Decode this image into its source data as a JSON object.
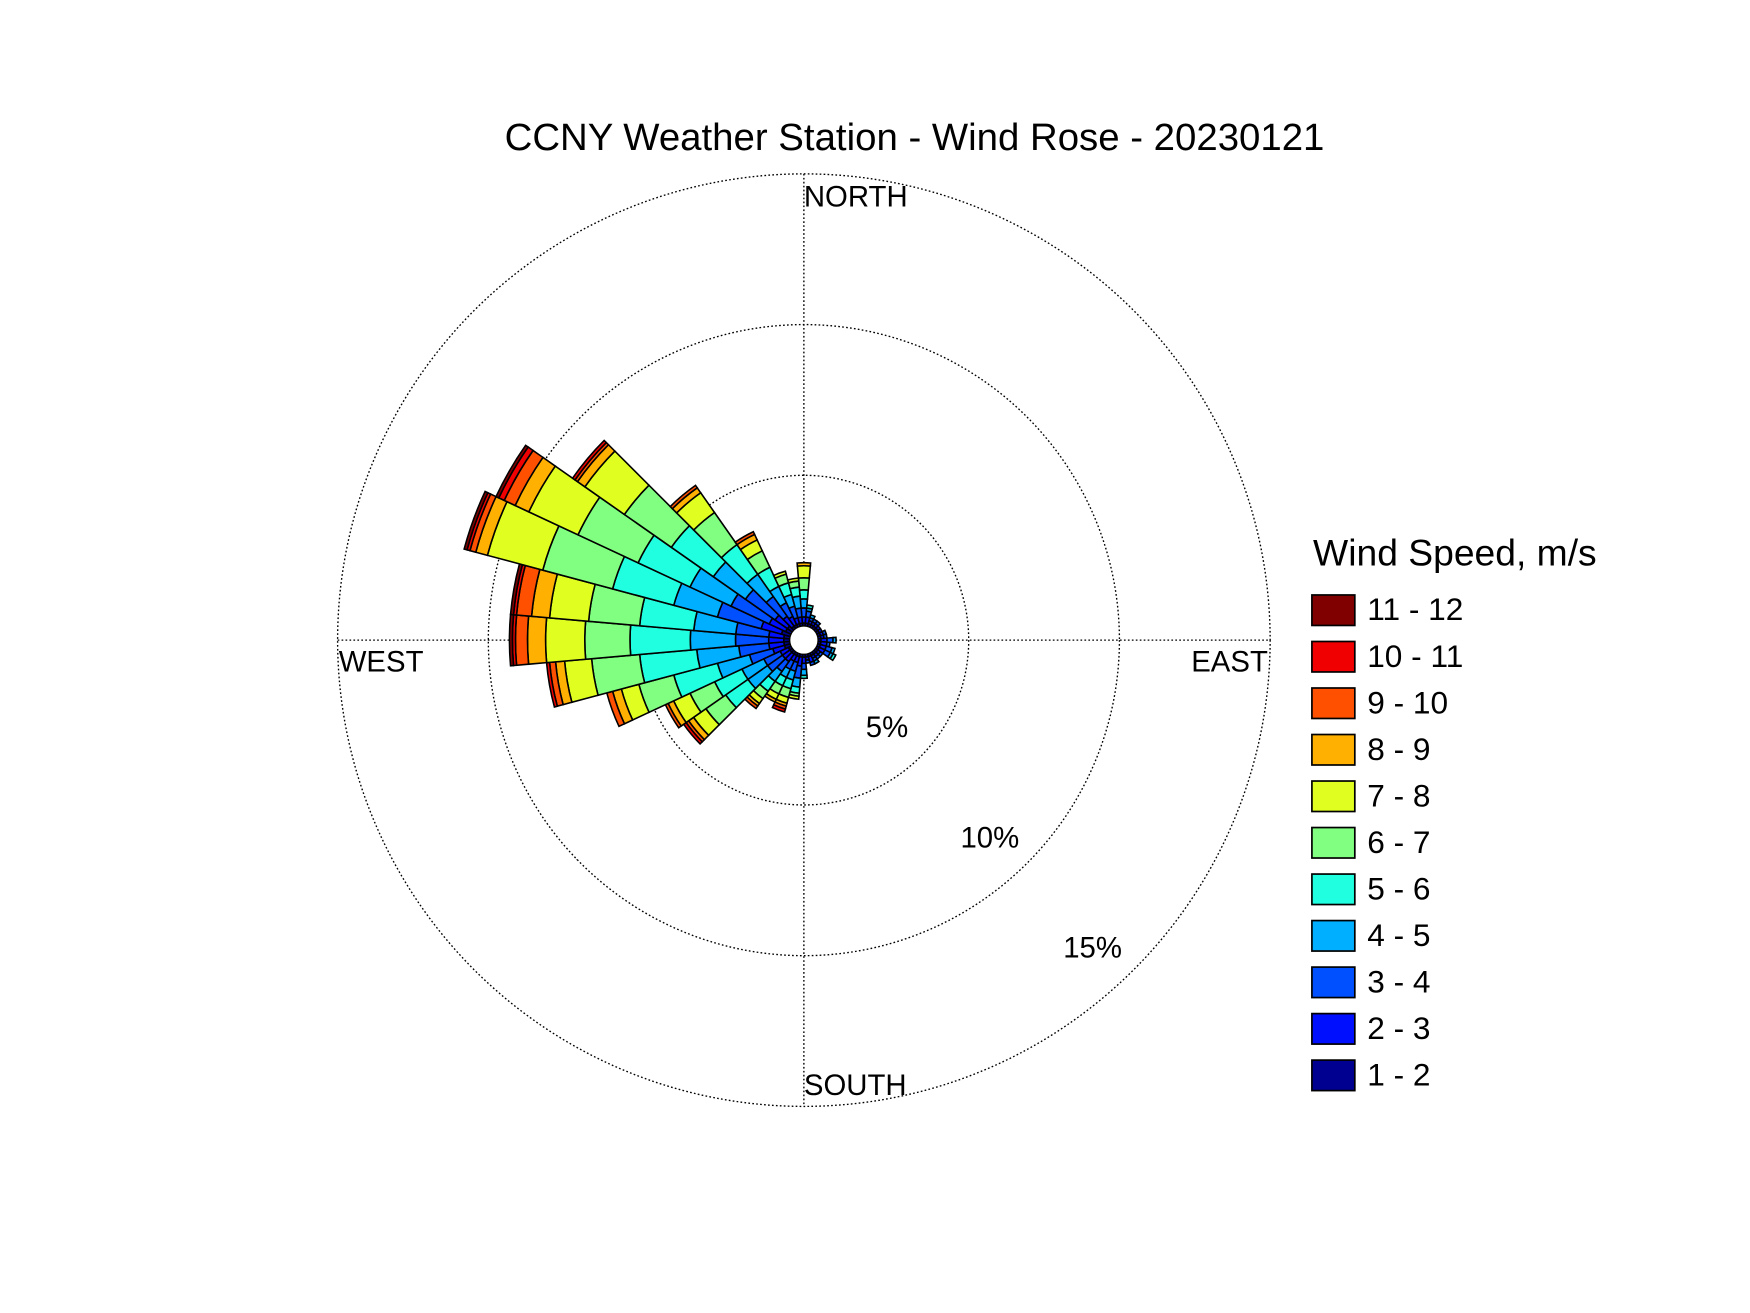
{
  "chart_data": {
    "type": "wind_rose",
    "title": "CCNY Weather Station - Wind Rose - 20230121",
    "legend_title": "Wind Speed, m/s",
    "direction_labels": {
      "north": "NORTH",
      "east": "EAST",
      "south": "SOUTH",
      "west": "WEST"
    },
    "x": [
      0,
      10,
      20,
      30,
      40,
      50,
      60,
      70,
      80,
      90,
      100,
      110,
      120,
      130,
      140,
      150,
      160,
      170,
      180,
      190,
      200,
      210,
      220,
      230,
      240,
      250,
      260,
      270,
      280,
      290,
      300,
      310,
      320,
      330,
      340,
      350
    ],
    "rlim": [
      0,
      15
    ],
    "rticks": [
      {
        "value": 5,
        "label": "5%"
      },
      {
        "value": 10,
        "label": "10%"
      },
      {
        "value": 15,
        "label": "15%"
      }
    ],
    "grid": true,
    "series": [
      {
        "name": "1 - 2",
        "color": "#000090",
        "values": [
          0.1,
          0.1,
          0.1,
          0.1,
          0.1,
          0.1,
          0.1,
          0.1,
          0.1,
          0.1,
          0.1,
          0.1,
          0.1,
          0.1,
          0.1,
          0.1,
          0.1,
          0.1,
          0.1,
          0.1,
          0.1,
          0.1,
          0.1,
          0.1,
          0.1,
          0.2,
          0.2,
          0.2,
          0.2,
          0.3,
          0.2,
          0.2,
          0.1,
          0.1,
          0.1,
          0.1
        ]
      },
      {
        "name": "2 - 3",
        "color": "#0010ff",
        "values": [
          0.2,
          0.2,
          0.1,
          0.1,
          0.1,
          0.1,
          0.1,
          0.1,
          0.1,
          0.2,
          0.2,
          0.2,
          0.2,
          0.1,
          0.1,
          0.1,
          0.2,
          0.1,
          0.2,
          0.3,
          0.2,
          0.2,
          0.3,
          0.3,
          0.3,
          0.4,
          0.5,
          0.5,
          0.5,
          0.7,
          0.6,
          0.5,
          0.4,
          0.3,
          0.2,
          0.2
        ]
      },
      {
        "name": "3 - 4",
        "color": "#0050ff",
        "values": [
          0.3,
          0.2,
          0.1,
          0.1,
          0.1,
          0,
          0,
          0.1,
          0.1,
          0.2,
          0.1,
          0.2,
          0.2,
          0.1,
          0.1,
          0.1,
          0.1,
          0.1,
          0.2,
          0.4,
          0.3,
          0.3,
          0.4,
          0.6,
          0.6,
          0.8,
          1.0,
          1.1,
          1.1,
          1.5,
          1.4,
          1.2,
          0.8,
          0.5,
          0.4,
          0.3
        ]
      },
      {
        "name": "4 - 5",
        "color": "#00afff",
        "values": [
          0.3,
          0.1,
          0.1,
          0,
          0,
          0,
          0,
          0,
          0,
          0.1,
          0,
          0.1,
          0.1,
          0,
          0,
          0.1,
          0,
          0,
          0.2,
          0.3,
          0.3,
          0.3,
          0.4,
          0.8,
          0.8,
          1.1,
          1.4,
          1.5,
          1.4,
          1.5,
          1.5,
          1.3,
          0.9,
          0.6,
          0.4,
          0.4
        ]
      },
      {
        "name": "5 - 6",
        "color": "#20ffe0",
        "values": [
          0.3,
          0.1,
          0,
          0,
          0,
          0,
          0,
          0,
          0,
          0,
          0,
          0,
          0.1,
          0,
          0,
          0,
          0,
          0,
          0.1,
          0.2,
          0.3,
          0.3,
          0.4,
          0.9,
          1.0,
          1.5,
          1.9,
          2.0,
          1.8,
          2.1,
          1.9,
          1.7,
          1.2,
          0.7,
          0.4,
          0.3
        ]
      },
      {
        "name": "6 - 7",
        "color": "#80ff80",
        "values": [
          0.4,
          0,
          0,
          0,
          0,
          0,
          0,
          0,
          0,
          0,
          0,
          0,
          0,
          0,
          0,
          0,
          0,
          0,
          0,
          0.1,
          0.3,
          0.3,
          0.3,
          0.8,
          0.9,
          1.2,
          1.6,
          1.5,
          1.7,
          2.4,
          2.2,
          1.9,
          1.3,
          0.6,
          0.3,
          0.2
        ]
      },
      {
        "name": "7 - 8",
        "color": "#e0ff20",
        "values": [
          0.4,
          0,
          0,
          0,
          0,
          0,
          0,
          0,
          0,
          0,
          0,
          0,
          0,
          0,
          0,
          0,
          0,
          0,
          0,
          0.1,
          0.2,
          0.2,
          0.2,
          0.5,
          0.6,
          0.6,
          0.9,
          1.3,
          1.3,
          1.9,
          1.8,
          1.6,
          0.8,
          0.4,
          0.1,
          0.1
        ]
      },
      {
        "name": "8 - 9",
        "color": "#ffb000",
        "values": [
          0.1,
          0,
          0,
          0,
          0,
          0,
          0,
          0,
          0,
          0,
          0,
          0,
          0,
          0,
          0,
          0,
          0,
          0,
          0,
          0,
          0.1,
          0.1,
          0.1,
          0.2,
          0.2,
          0.3,
          0.3,
          0.6,
          0.6,
          0.4,
          0.5,
          0.3,
          0.2,
          0.2,
          0,
          0
        ]
      },
      {
        "name": "9 - 10",
        "color": "#ff5000",
        "values": [
          0,
          0,
          0,
          0,
          0,
          0,
          0,
          0,
          0,
          0,
          0,
          0,
          0,
          0,
          0,
          0,
          0,
          0,
          0,
          0,
          0.1,
          0,
          0.1,
          0.1,
          0.1,
          0.2,
          0.2,
          0.4,
          0.5,
          0.2,
          0.4,
          0.1,
          0.1,
          0.1,
          0,
          0
        ]
      },
      {
        "name": "10 - 11",
        "color": "#f00000",
        "values": [
          0,
          0,
          0,
          0,
          0,
          0,
          0,
          0,
          0,
          0,
          0,
          0,
          0,
          0,
          0,
          0,
          0,
          0,
          0,
          0,
          0.1,
          0,
          0,
          0.1,
          0,
          0,
          0.1,
          0.1,
          0.1,
          0.1,
          0.2,
          0.1,
          0,
          0,
          0,
          0
        ]
      },
      {
        "name": "11 - 12",
        "color": "#800000",
        "values": [
          0,
          0,
          0,
          0,
          0,
          0,
          0,
          0,
          0,
          0,
          0,
          0,
          0,
          0,
          0,
          0,
          0,
          0,
          0,
          0,
          0,
          0,
          0,
          0,
          0,
          0,
          0,
          0.1,
          0.1,
          0.1,
          0.1,
          0,
          0,
          0,
          0,
          0
        ]
      }
    ]
  }
}
